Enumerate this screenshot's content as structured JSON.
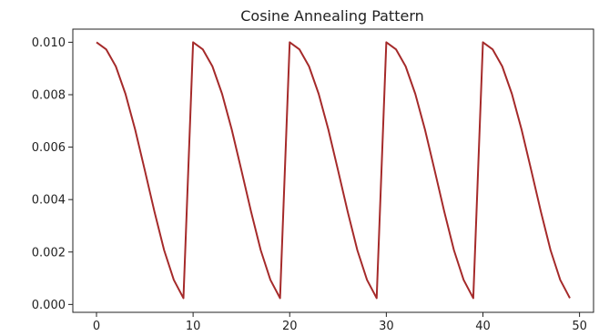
{
  "chart_data": {
    "type": "line",
    "title": "Cosine Annealing Pattern",
    "xlabel": "",
    "ylabel": "",
    "xlim": [
      -2.45,
      51.45
    ],
    "ylim": [
      -0.0003,
      0.0105
    ],
    "xticks": [
      0,
      10,
      20,
      30,
      40,
      50
    ],
    "yticks": [
      0.0,
      0.002,
      0.004,
      0.006,
      0.008,
      0.01
    ],
    "xtick_labels": [
      "0",
      "10",
      "20",
      "30",
      "40",
      "50"
    ],
    "ytick_labels": [
      "0.000",
      "0.002",
      "0.004",
      "0.006",
      "0.008",
      "0.010"
    ],
    "grid": false,
    "legend": "none",
    "series": [
      {
        "color": "#a52a2a",
        "x": [
          0,
          1,
          2,
          3,
          4,
          5,
          6,
          7,
          8,
          9,
          10,
          11,
          12,
          13,
          14,
          15,
          16,
          17,
          18,
          19,
          20,
          21,
          22,
          23,
          24,
          25,
          26,
          27,
          28,
          29,
          30,
          31,
          32,
          33,
          34,
          35,
          36,
          37,
          38,
          39,
          40,
          41,
          42,
          43,
          44,
          45,
          46,
          47,
          48,
          49
        ],
        "y": [
          0.01,
          0.00973,
          0.00908,
          0.00803,
          0.00667,
          0.00512,
          0.00354,
          0.00207,
          0.00094,
          0.00024,
          0.01,
          0.00973,
          0.00908,
          0.00803,
          0.00667,
          0.00512,
          0.00354,
          0.00207,
          0.00094,
          0.00024,
          0.01,
          0.00973,
          0.00908,
          0.00803,
          0.00667,
          0.00512,
          0.00354,
          0.00207,
          0.00094,
          0.00024,
          0.01,
          0.00973,
          0.00908,
          0.00803,
          0.00667,
          0.00512,
          0.00354,
          0.00207,
          0.00094,
          0.00024,
          0.01,
          0.00973,
          0.00908,
          0.00803,
          0.00667,
          0.00512,
          0.00354,
          0.00207,
          0.00094,
          0.00024
        ]
      }
    ]
  },
  "colors": {
    "axis": "#222222",
    "line": "#a52a2a",
    "background": "#ffffff"
  }
}
